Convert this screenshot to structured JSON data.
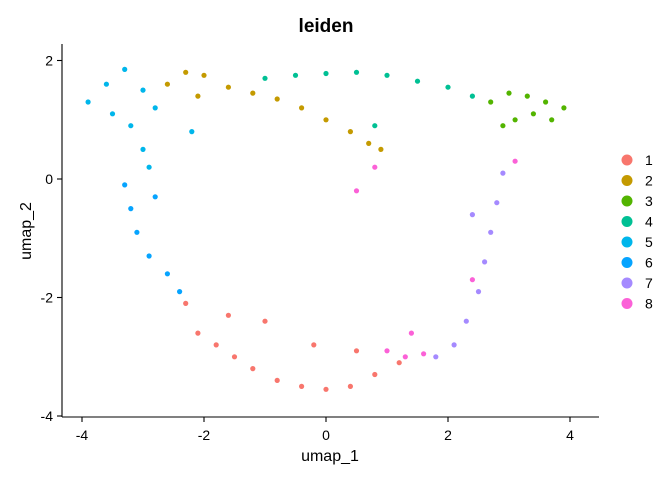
{
  "chart_data": {
    "type": "scatter",
    "title": "leiden",
    "xlabel": "umap_1",
    "ylabel": "umap_2",
    "xlim": [
      -4.3,
      4.4
    ],
    "ylim": [
      -4.05,
      2.25
    ],
    "x_ticks": [
      "-4",
      "-2",
      "0",
      "2",
      "4"
    ],
    "y_ticks": [
      "-4",
      "-2",
      "0",
      "2"
    ],
    "grid": false,
    "legend_position": "right",
    "series": [
      {
        "name": "1",
        "color": "#F8766D",
        "values": [
          [
            -2.3,
            -2.1
          ],
          [
            -2.1,
            -2.6
          ],
          [
            -1.8,
            -2.8
          ],
          [
            -1.5,
            -3.0
          ],
          [
            -1.2,
            -3.2
          ],
          [
            -0.8,
            -3.4
          ],
          [
            -0.4,
            -3.5
          ],
          [
            0.0,
            -3.55
          ],
          [
            0.4,
            -3.5
          ],
          [
            0.8,
            -3.3
          ],
          [
            1.2,
            -3.1
          ],
          [
            -1.0,
            -2.4
          ],
          [
            -0.2,
            -2.8
          ],
          [
            0.5,
            -2.9
          ],
          [
            -1.6,
            -2.3
          ]
        ]
      },
      {
        "name": "2",
        "color": "#C49A00",
        "values": [
          [
            -2.6,
            1.6
          ],
          [
            -2.3,
            1.8
          ],
          [
            -2.0,
            1.75
          ],
          [
            -1.6,
            1.55
          ],
          [
            -1.2,
            1.45
          ],
          [
            -0.8,
            1.35
          ],
          [
            -0.4,
            1.2
          ],
          [
            0.0,
            1.0
          ],
          [
            0.4,
            0.8
          ],
          [
            0.7,
            0.6
          ],
          [
            -2.1,
            1.4
          ],
          [
            0.9,
            0.5
          ]
        ]
      },
      {
        "name": "3",
        "color": "#53B400",
        "values": [
          [
            2.7,
            1.3
          ],
          [
            3.0,
            1.45
          ],
          [
            3.3,
            1.4
          ],
          [
            3.6,
            1.3
          ],
          [
            3.9,
            1.2
          ],
          [
            3.4,
            1.1
          ],
          [
            3.1,
            1.0
          ],
          [
            2.9,
            0.9
          ],
          [
            3.7,
            1.0
          ]
        ]
      },
      {
        "name": "4",
        "color": "#00C094",
        "values": [
          [
            -0.5,
            1.75
          ],
          [
            0.0,
            1.78
          ],
          [
            0.5,
            1.8
          ],
          [
            1.0,
            1.75
          ],
          [
            1.5,
            1.65
          ],
          [
            2.0,
            1.55
          ],
          [
            2.4,
            1.4
          ],
          [
            -1.0,
            1.7
          ],
          [
            0.8,
            0.9
          ]
        ]
      },
      {
        "name": "5",
        "color": "#00B6EB",
        "values": [
          [
            -3.9,
            1.3
          ],
          [
            -3.6,
            1.6
          ],
          [
            -3.3,
            1.85
          ],
          [
            -3.0,
            1.5
          ],
          [
            -2.8,
            1.2
          ],
          [
            -3.2,
            0.9
          ],
          [
            -3.0,
            0.5
          ],
          [
            -2.9,
            0.2
          ],
          [
            -3.5,
            1.1
          ],
          [
            -2.2,
            0.8
          ]
        ]
      },
      {
        "name": "6",
        "color": "#06A4FF",
        "values": [
          [
            -3.3,
            -0.1
          ],
          [
            -3.2,
            -0.5
          ],
          [
            -3.1,
            -0.9
          ],
          [
            -2.9,
            -1.3
          ],
          [
            -2.6,
            -1.6
          ],
          [
            -2.4,
            -1.9
          ],
          [
            -2.8,
            -0.3
          ]
        ]
      },
      {
        "name": "7",
        "color": "#A58AFF",
        "values": [
          [
            2.9,
            0.1
          ],
          [
            2.8,
            -0.4
          ],
          [
            2.7,
            -0.9
          ],
          [
            2.6,
            -1.4
          ],
          [
            2.5,
            -1.9
          ],
          [
            2.3,
            -2.4
          ],
          [
            2.1,
            -2.8
          ],
          [
            1.8,
            -3.0
          ],
          [
            2.4,
            -0.6
          ]
        ]
      },
      {
        "name": "8",
        "color": "#FB61D7",
        "values": [
          [
            0.5,
            -0.2
          ],
          [
            0.8,
            0.2
          ],
          [
            1.0,
            -2.9
          ],
          [
            1.3,
            -3.0
          ],
          [
            1.6,
            -2.95
          ],
          [
            3.1,
            0.3
          ],
          [
            2.4,
            -1.7
          ],
          [
            1.4,
            -2.6
          ]
        ]
      }
    ]
  }
}
